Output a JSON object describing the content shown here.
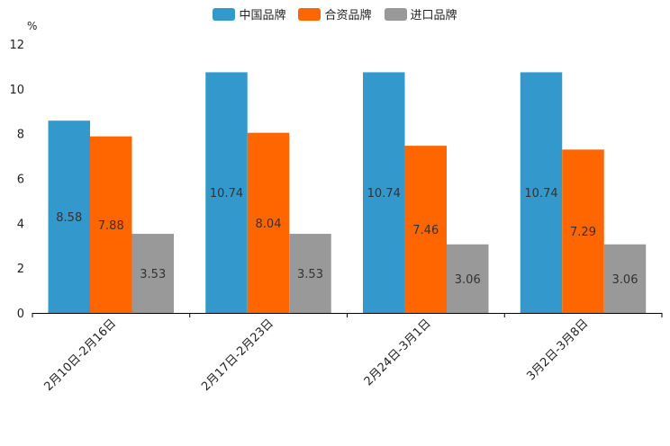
{
  "chart_data": {
    "type": "bar",
    "unit": "%",
    "categories": [
      "2月10日-2月16日",
      "2月17日-2月23日",
      "2月24日-3月1日",
      "3月2日-3月8日"
    ],
    "series": [
      {
        "name": "中国品牌",
        "color": "#3399cc",
        "values": [
          8.58,
          10.74,
          10.74,
          10.74
        ]
      },
      {
        "name": "合资品牌",
        "color": "#ff6600",
        "values": [
          7.88,
          8.04,
          7.46,
          7.29
        ]
      },
      {
        "name": "进口品牌",
        "color": "#999999",
        "values": [
          3.53,
          3.53,
          3.06,
          3.06
        ]
      }
    ],
    "ylim": [
      0,
      12
    ],
    "yticks": [
      0,
      2,
      4,
      6,
      8,
      10,
      12
    ],
    "legend_position": "top-center"
  }
}
